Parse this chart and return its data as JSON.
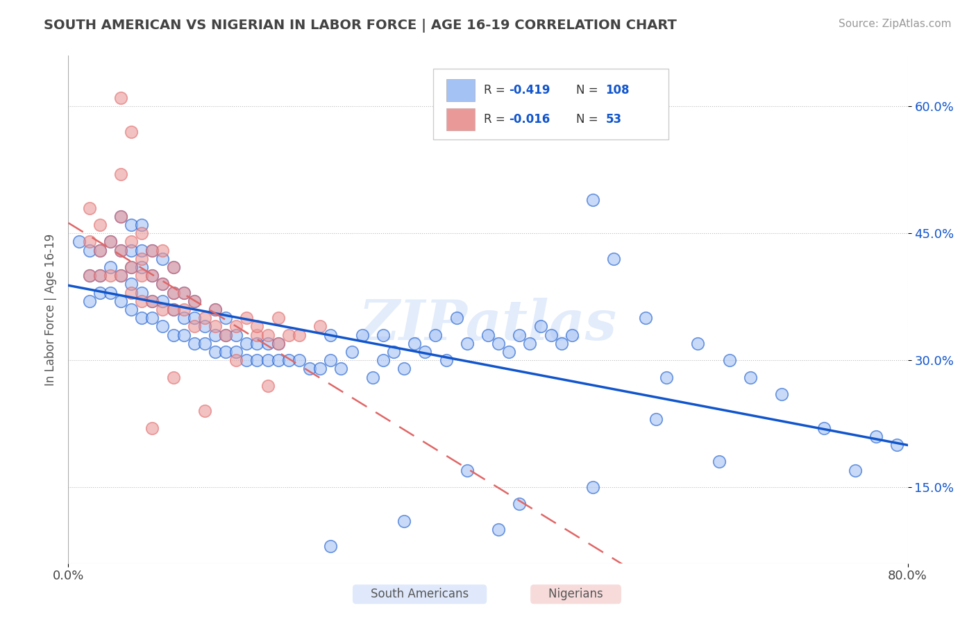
{
  "title": "SOUTH AMERICAN VS NIGERIAN IN LABOR FORCE | AGE 16-19 CORRELATION CHART",
  "source": "Source: ZipAtlas.com",
  "ylabel": "In Labor Force | Age 16-19",
  "xmin": 0.0,
  "xmax": 0.8,
  "ymin": 0.06,
  "ymax": 0.66,
  "yticks": [
    0.15,
    0.3,
    0.45,
    0.6
  ],
  "ytick_labels": [
    "15.0%",
    "30.0%",
    "45.0%",
    "60.0%"
  ],
  "xticks": [
    0.0,
    0.8
  ],
  "xtick_labels": [
    "0.0%",
    "80.0%"
  ],
  "blue_R": -0.419,
  "blue_N": 108,
  "pink_R": -0.016,
  "pink_N": 53,
  "blue_color": "#a4c2f4",
  "pink_color": "#ea9999",
  "blue_line_color": "#1155cc",
  "pink_line_color": "#e06666",
  "title_color": "#434343",
  "source_color": "#999999",
  "watermark_color": "#c9daf8",
  "watermark_color2": "#d9d9d9",
  "watermark": "ZIPatlas",
  "blue_scatter_x": [
    0.01,
    0.02,
    0.02,
    0.02,
    0.03,
    0.03,
    0.03,
    0.04,
    0.04,
    0.04,
    0.05,
    0.05,
    0.05,
    0.05,
    0.06,
    0.06,
    0.06,
    0.06,
    0.06,
    0.07,
    0.07,
    0.07,
    0.07,
    0.07,
    0.08,
    0.08,
    0.08,
    0.08,
    0.09,
    0.09,
    0.09,
    0.09,
    0.1,
    0.1,
    0.1,
    0.1,
    0.11,
    0.11,
    0.11,
    0.12,
    0.12,
    0.12,
    0.13,
    0.13,
    0.14,
    0.14,
    0.14,
    0.15,
    0.15,
    0.15,
    0.16,
    0.16,
    0.17,
    0.17,
    0.18,
    0.18,
    0.19,
    0.19,
    0.2,
    0.2,
    0.21,
    0.22,
    0.23,
    0.24,
    0.25,
    0.25,
    0.26,
    0.27,
    0.28,
    0.29,
    0.3,
    0.3,
    0.31,
    0.32,
    0.33,
    0.34,
    0.35,
    0.36,
    0.37,
    0.38,
    0.4,
    0.41,
    0.42,
    0.43,
    0.44,
    0.45,
    0.46,
    0.47,
    0.48,
    0.5,
    0.52,
    0.55,
    0.57,
    0.6,
    0.63,
    0.65,
    0.5,
    0.56,
    0.62,
    0.68,
    0.72,
    0.75,
    0.77,
    0.79,
    0.43,
    0.38,
    0.25,
    0.32,
    0.41
  ],
  "blue_scatter_y": [
    0.44,
    0.4,
    0.37,
    0.43,
    0.4,
    0.38,
    0.43,
    0.38,
    0.41,
    0.44,
    0.37,
    0.4,
    0.43,
    0.47,
    0.36,
    0.39,
    0.41,
    0.43,
    0.46,
    0.35,
    0.38,
    0.41,
    0.43,
    0.46,
    0.35,
    0.37,
    0.4,
    0.43,
    0.34,
    0.37,
    0.39,
    0.42,
    0.33,
    0.36,
    0.38,
    0.41,
    0.33,
    0.35,
    0.38,
    0.32,
    0.35,
    0.37,
    0.32,
    0.34,
    0.31,
    0.33,
    0.36,
    0.31,
    0.33,
    0.35,
    0.31,
    0.33,
    0.3,
    0.32,
    0.3,
    0.32,
    0.3,
    0.32,
    0.3,
    0.32,
    0.3,
    0.3,
    0.29,
    0.29,
    0.3,
    0.33,
    0.29,
    0.31,
    0.33,
    0.28,
    0.3,
    0.33,
    0.31,
    0.29,
    0.32,
    0.31,
    0.33,
    0.3,
    0.35,
    0.32,
    0.33,
    0.32,
    0.31,
    0.33,
    0.32,
    0.34,
    0.33,
    0.32,
    0.33,
    0.49,
    0.42,
    0.35,
    0.28,
    0.32,
    0.3,
    0.28,
    0.15,
    0.23,
    0.18,
    0.26,
    0.22,
    0.17,
    0.21,
    0.2,
    0.13,
    0.17,
    0.08,
    0.11,
    0.1
  ],
  "pink_scatter_x": [
    0.02,
    0.02,
    0.02,
    0.03,
    0.03,
    0.03,
    0.04,
    0.04,
    0.05,
    0.05,
    0.05,
    0.05,
    0.06,
    0.06,
    0.06,
    0.07,
    0.07,
    0.07,
    0.07,
    0.08,
    0.08,
    0.08,
    0.09,
    0.09,
    0.09,
    0.1,
    0.1,
    0.1,
    0.11,
    0.11,
    0.12,
    0.12,
    0.13,
    0.14,
    0.14,
    0.15,
    0.16,
    0.17,
    0.18,
    0.18,
    0.19,
    0.2,
    0.2,
    0.21,
    0.22,
    0.24,
    0.08,
    0.06,
    0.05,
    0.16,
    0.19,
    0.13,
    0.1
  ],
  "pink_scatter_y": [
    0.4,
    0.44,
    0.48,
    0.4,
    0.43,
    0.46,
    0.4,
    0.44,
    0.4,
    0.43,
    0.47,
    0.61,
    0.38,
    0.41,
    0.44,
    0.37,
    0.4,
    0.42,
    0.45,
    0.37,
    0.4,
    0.43,
    0.36,
    0.39,
    0.43,
    0.36,
    0.38,
    0.41,
    0.36,
    0.38,
    0.34,
    0.37,
    0.35,
    0.34,
    0.36,
    0.33,
    0.34,
    0.35,
    0.33,
    0.34,
    0.33,
    0.35,
    0.32,
    0.33,
    0.33,
    0.34,
    0.22,
    0.57,
    0.52,
    0.3,
    0.27,
    0.24,
    0.28
  ]
}
